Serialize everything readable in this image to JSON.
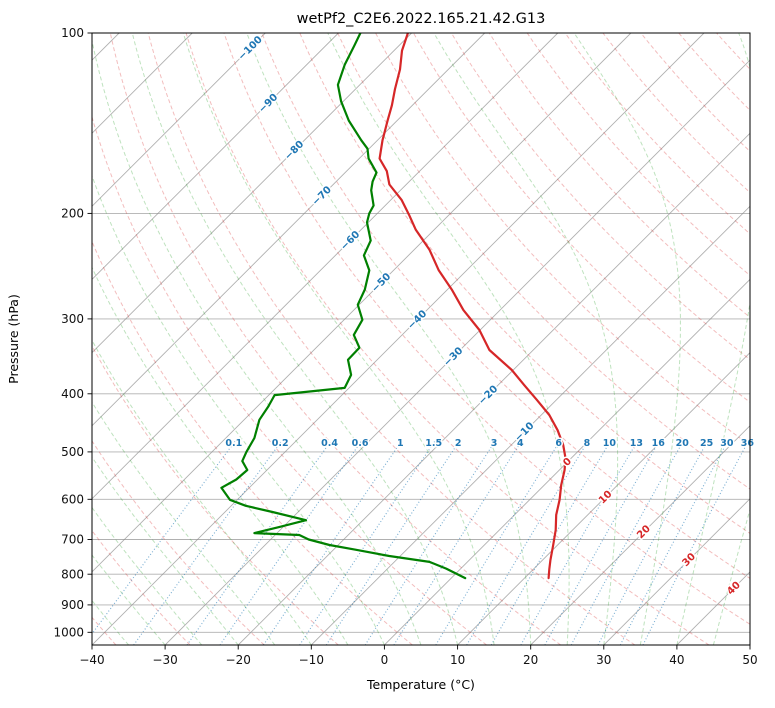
{
  "chart_data": {
    "type": "line",
    "subtype": "skew-t-log-p-sounding",
    "title": "wetPf2_C2E6.2022.165.21.42.G13",
    "xlabel": "Temperature (°C)",
    "ylabel": "Pressure (hPa)",
    "xlim": [
      -40,
      50
    ],
    "pressure_lim": [
      100,
      1050
    ],
    "skew_deg": 45,
    "grid": true,
    "x_ticks": [
      -40,
      -30,
      -20,
      -10,
      0,
      10,
      20,
      30,
      40,
      50
    ],
    "y_ticks": [
      100,
      200,
      300,
      400,
      500,
      600,
      700,
      800,
      900,
      1000
    ],
    "x_tick_labels": [
      "−40",
      "−30",
      "−20",
      "−10",
      "0",
      "10",
      "20",
      "30",
      "40",
      "50"
    ],
    "y_tick_labels": [
      "100",
      "200",
      "300",
      "400",
      "500",
      "600",
      "700",
      "800",
      "900",
      "1000"
    ],
    "colors": {
      "temperature": "#d62728",
      "dewpoint": "#008000",
      "isotherm": "#8f8f8f",
      "isobar": "#8f8f8f",
      "dry_adiabat": "#d62728",
      "moist_adiabat": "#2ca02c",
      "mixing_ratio": "#1f77b4",
      "neg_isotherm_label": "#1f77b4",
      "pos_isotherm_label": "#d62728"
    },
    "isotherms": {
      "start": -130,
      "end": 50,
      "step": 10
    },
    "isotherm_labels": [
      {
        "label": "−100",
        "t": -100,
        "p": 106,
        "color": "#1f77b4"
      },
      {
        "label": "−90",
        "t": -90,
        "p": 131,
        "color": "#1f77b4"
      },
      {
        "label": "−80",
        "t": -80,
        "p": 157,
        "color": "#1f77b4"
      },
      {
        "label": "−70",
        "t": -70,
        "p": 187,
        "color": "#1f77b4"
      },
      {
        "label": "−60",
        "t": -60,
        "p": 222,
        "color": "#1f77b4"
      },
      {
        "label": "−50",
        "t": -50,
        "p": 261,
        "color": "#1f77b4"
      },
      {
        "label": "−40",
        "t": -40,
        "p": 301,
        "color": "#1f77b4"
      },
      {
        "label": "−30",
        "t": -30,
        "p": 347,
        "color": "#1f77b4"
      },
      {
        "label": "−20",
        "t": -20,
        "p": 402,
        "color": "#1f77b4"
      },
      {
        "label": "−10",
        "t": -10,
        "p": 463,
        "color": "#1f77b4"
      },
      {
        "label": "0",
        "t": 0,
        "p": 520,
        "color": "#d62728"
      },
      {
        "label": "10",
        "t": 10,
        "p": 595,
        "color": "#d62728"
      },
      {
        "label": "20",
        "t": 20,
        "p": 680,
        "color": "#d62728"
      },
      {
        "label": "30",
        "t": 30,
        "p": 757,
        "color": "#d62728"
      },
      {
        "label": "40",
        "t": 40,
        "p": 844,
        "color": "#d62728"
      }
    ],
    "mixing_ratio_lines": {
      "values": [
        0.1,
        0.2,
        0.4,
        0.6,
        1,
        1.5,
        2,
        3,
        4,
        6,
        8,
        10,
        13,
        16,
        20,
        25,
        30,
        36
      ],
      "labels": [
        "0.1",
        "0.2",
        "0.4",
        "0.6",
        "1",
        "1.5",
        "2",
        "3",
        "4",
        "6",
        "8",
        "10",
        "13",
        "16",
        "20",
        "25",
        "30",
        "36"
      ],
      "label_pressure": 483,
      "top_pressure": 480,
      "color": "#1f77b4"
    },
    "dry_adiabats": {
      "theta_start_c": -40,
      "theta_end_c": 190,
      "step": 10
    },
    "moist_adiabats": {
      "t_start_c": -40,
      "t_end_c": 45,
      "step": 5
    },
    "series": [
      {
        "name": "temperature",
        "color": "#d62728",
        "points": [
          [
            100,
            -80.5
          ],
          [
            107,
            -78.9
          ],
          [
            115,
            -76.6
          ],
          [
            124,
            -74.6
          ],
          [
            132,
            -72.8
          ],
          [
            140,
            -71.3
          ],
          [
            151,
            -69.3
          ],
          [
            162,
            -67.2
          ],
          [
            170,
            -64.5
          ],
          [
            179,
            -62.3
          ],
          [
            190,
            -58.5
          ],
          [
            201,
            -55.5
          ],
          [
            213,
            -52.5
          ],
          [
            230,
            -47.9
          ],
          [
            249,
            -43.8
          ],
          [
            268,
            -39.4
          ],
          [
            290,
            -35.0
          ],
          [
            313,
            -30.1
          ],
          [
            338,
            -26.0
          ],
          [
            365,
            -20.2
          ],
          [
            387,
            -16.4
          ],
          [
            410,
            -12.6
          ],
          [
            434,
            -8.9
          ],
          [
            460,
            -5.7
          ],
          [
            487,
            -2.9
          ],
          [
            512,
            -0.8
          ],
          [
            536,
            0.7
          ],
          [
            568,
            2.3
          ],
          [
            601,
            4.1
          ],
          [
            637,
            5.7
          ],
          [
            675,
            7.7
          ],
          [
            715,
            9.4
          ],
          [
            758,
            11.1
          ],
          [
            785,
            12.2
          ],
          [
            812,
            13.3
          ]
        ]
      },
      {
        "name": "dewpoint",
        "color": "#008000",
        "points": [
          [
            100,
            -87.0
          ],
          [
            105,
            -86.1
          ],
          [
            113,
            -84.8
          ],
          [
            122,
            -83.0
          ],
          [
            130,
            -80.3
          ],
          [
            140,
            -76.6
          ],
          [
            151,
            -72.2
          ],
          [
            156,
            -70.2
          ],
          [
            162,
            -68.7
          ],
          [
            171,
            -65.7
          ],
          [
            177,
            -65.0
          ],
          [
            183,
            -64.0
          ],
          [
            194,
            -61.6
          ],
          [
            200,
            -61.1
          ],
          [
            207,
            -60.2
          ],
          [
            222,
            -57.2
          ],
          [
            235,
            -56.1
          ],
          [
            249,
            -53.3
          ],
          [
            268,
            -51.3
          ],
          [
            284,
            -50.2
          ],
          [
            301,
            -47.5
          ],
          [
            319,
            -46.6
          ],
          [
            335,
            -44.1
          ],
          [
            351,
            -44.0
          ],
          [
            372,
            -41.5
          ],
          [
            391,
            -40.6
          ],
          [
            402,
            -49.2
          ],
          [
            420,
            -48.5
          ],
          [
            442,
            -47.9
          ],
          [
            474,
            -46.1
          ],
          [
            500,
            -45.3
          ],
          [
            518,
            -44.6
          ],
          [
            536,
            -42.7
          ],
          [
            556,
            -42.9
          ],
          [
            574,
            -43.8
          ],
          [
            601,
            -41.0
          ],
          [
            615,
            -38.0
          ],
          [
            630,
            -33.5
          ],
          [
            650,
            -27.8
          ],
          [
            667,
            -30.5
          ],
          [
            683,
            -33.1
          ],
          [
            688,
            -26.7
          ],
          [
            700,
            -24.8
          ],
          [
            715,
            -21.2
          ],
          [
            728,
            -17.0
          ],
          [
            746,
            -11.5
          ],
          [
            763,
            -5.2
          ],
          [
            783,
            -2.0
          ],
          [
            812,
            1.9
          ]
        ]
      }
    ]
  }
}
